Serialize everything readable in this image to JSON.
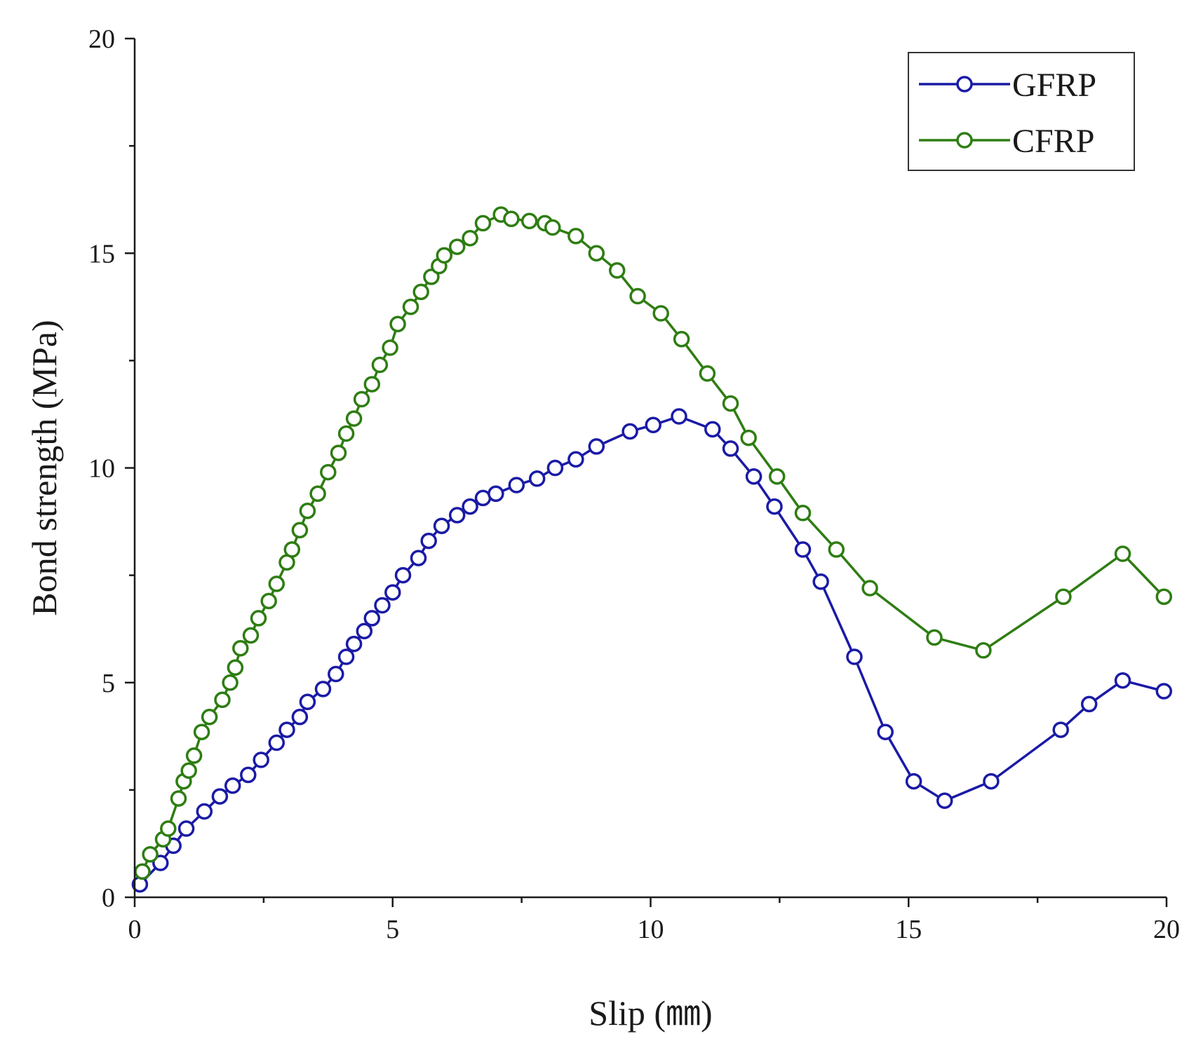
{
  "chart_data": {
    "type": "line",
    "title": "",
    "xlabel": "Slip (㎜)",
    "ylabel": "Bond strength (MPa)",
    "xlim": [
      0,
      20
    ],
    "ylim": [
      0,
      20
    ],
    "x_major_ticks": [
      0,
      5,
      10,
      15,
      20
    ],
    "x_minor_ticks": [
      2.5,
      7.5,
      12.5,
      17.5
    ],
    "y_major_ticks": [
      0,
      5,
      10,
      15,
      20
    ],
    "y_minor_ticks": [
      2.5,
      7.5,
      12.5,
      17.5
    ],
    "x_tick_labels": [
      "0",
      "5",
      "10",
      "15",
      "20"
    ],
    "y_tick_labels": [
      "0",
      "5",
      "10",
      "15",
      "20"
    ],
    "grid": false,
    "legend_position": "top-right",
    "marker": "open-circle",
    "series": [
      {
        "name": "GFRP",
        "color": "#1a1aa6",
        "points": [
          [
            0.1,
            0.3
          ],
          [
            0.5,
            0.8
          ],
          [
            0.75,
            1.2
          ],
          [
            1.0,
            1.6
          ],
          [
            1.35,
            2.0
          ],
          [
            1.65,
            2.35
          ],
          [
            1.9,
            2.6
          ],
          [
            2.2,
            2.85
          ],
          [
            2.45,
            3.2
          ],
          [
            2.75,
            3.6
          ],
          [
            2.95,
            3.9
          ],
          [
            3.2,
            4.2
          ],
          [
            3.35,
            4.55
          ],
          [
            3.65,
            4.85
          ],
          [
            3.9,
            5.2
          ],
          [
            4.1,
            5.6
          ],
          [
            4.25,
            5.9
          ],
          [
            4.45,
            6.2
          ],
          [
            4.6,
            6.5
          ],
          [
            4.8,
            6.8
          ],
          [
            5.0,
            7.1
          ],
          [
            5.2,
            7.5
          ],
          [
            5.5,
            7.9
          ],
          [
            5.7,
            8.3
          ],
          [
            5.95,
            8.65
          ],
          [
            6.25,
            8.9
          ],
          [
            6.5,
            9.1
          ],
          [
            6.75,
            9.3
          ],
          [
            7.0,
            9.4
          ],
          [
            7.4,
            9.6
          ],
          [
            7.8,
            9.75
          ],
          [
            8.15,
            10.0
          ],
          [
            8.55,
            10.2
          ],
          [
            8.95,
            10.5
          ],
          [
            9.6,
            10.85
          ],
          [
            10.05,
            11.0
          ],
          [
            10.55,
            11.2
          ],
          [
            11.2,
            10.9
          ],
          [
            11.55,
            10.45
          ],
          [
            12.0,
            9.8
          ],
          [
            12.4,
            9.1
          ],
          [
            12.95,
            8.1
          ],
          [
            13.3,
            7.35
          ],
          [
            13.95,
            5.6
          ],
          [
            14.55,
            3.85
          ],
          [
            15.1,
            2.7
          ],
          [
            15.7,
            2.25
          ],
          [
            16.6,
            2.7
          ],
          [
            17.95,
            3.9
          ],
          [
            18.5,
            4.5
          ],
          [
            19.15,
            5.05
          ],
          [
            19.95,
            4.8
          ]
        ]
      },
      {
        "name": "CFRP",
        "color": "#2e7d12",
        "points": [
          [
            0.15,
            0.6
          ],
          [
            0.3,
            1.0
          ],
          [
            0.55,
            1.35
          ],
          [
            0.65,
            1.6
          ],
          [
            0.85,
            2.3
          ],
          [
            0.95,
            2.7
          ],
          [
            1.05,
            2.95
          ],
          [
            1.15,
            3.3
          ],
          [
            1.3,
            3.85
          ],
          [
            1.45,
            4.2
          ],
          [
            1.7,
            4.6
          ],
          [
            1.85,
            5.0
          ],
          [
            1.95,
            5.35
          ],
          [
            2.05,
            5.8
          ],
          [
            2.25,
            6.1
          ],
          [
            2.4,
            6.5
          ],
          [
            2.6,
            6.9
          ],
          [
            2.75,
            7.3
          ],
          [
            2.95,
            7.8
          ],
          [
            3.05,
            8.1
          ],
          [
            3.2,
            8.55
          ],
          [
            3.35,
            9.0
          ],
          [
            3.55,
            9.4
          ],
          [
            3.75,
            9.9
          ],
          [
            3.95,
            10.35
          ],
          [
            4.1,
            10.8
          ],
          [
            4.25,
            11.15
          ],
          [
            4.4,
            11.6
          ],
          [
            4.6,
            11.95
          ],
          [
            4.75,
            12.4
          ],
          [
            4.95,
            12.8
          ],
          [
            5.1,
            13.35
          ],
          [
            5.35,
            13.75
          ],
          [
            5.55,
            14.1
          ],
          [
            5.75,
            14.45
          ],
          [
            5.9,
            14.7
          ],
          [
            6.0,
            14.95
          ],
          [
            6.25,
            15.15
          ],
          [
            6.5,
            15.35
          ],
          [
            6.75,
            15.7
          ],
          [
            7.1,
            15.9
          ],
          [
            7.3,
            15.8
          ],
          [
            7.65,
            15.75
          ],
          [
            7.95,
            15.7
          ],
          [
            8.1,
            15.6
          ],
          [
            8.55,
            15.4
          ],
          [
            8.95,
            15.0
          ],
          [
            9.35,
            14.6
          ],
          [
            9.75,
            14.0
          ],
          [
            10.2,
            13.6
          ],
          [
            10.6,
            13.0
          ],
          [
            11.1,
            12.2
          ],
          [
            11.55,
            11.5
          ],
          [
            11.9,
            10.7
          ],
          [
            12.45,
            9.8
          ],
          [
            12.95,
            8.95
          ],
          [
            13.6,
            8.1
          ],
          [
            14.25,
            7.2
          ],
          [
            15.5,
            6.05
          ],
          [
            16.45,
            5.75
          ],
          [
            18.0,
            7.0
          ],
          [
            19.15,
            8.0
          ],
          [
            19.95,
            7.0
          ]
        ]
      }
    ]
  }
}
